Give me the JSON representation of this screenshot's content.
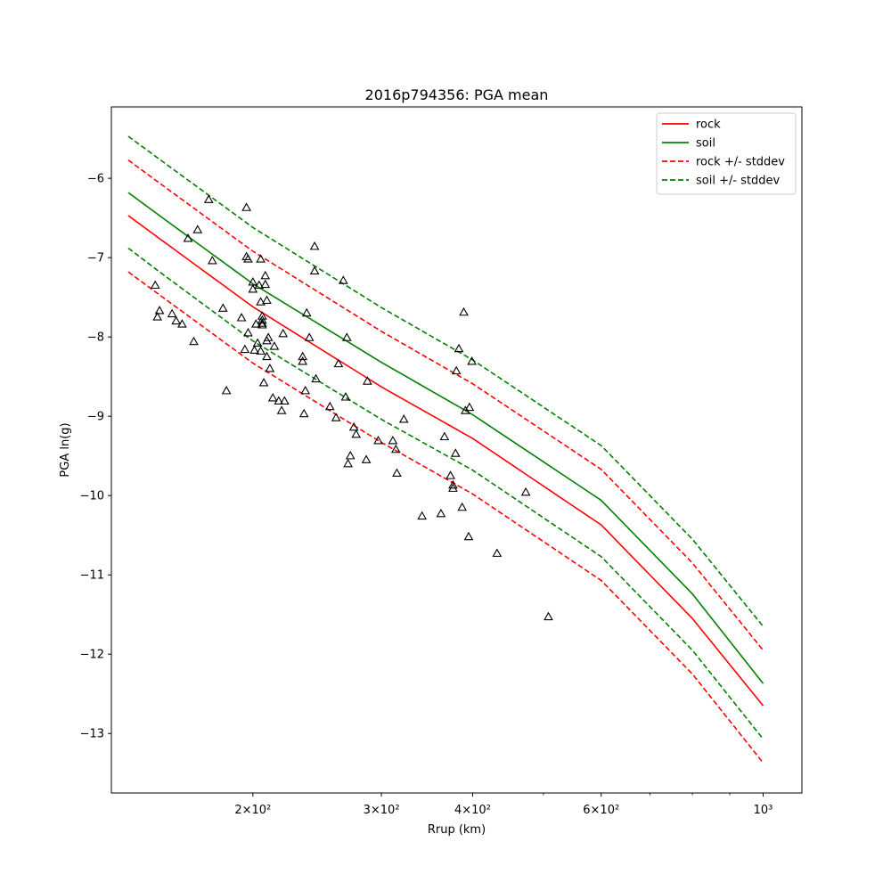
{
  "chart_data": {
    "type": "line",
    "title": "2016p794356: PGA mean",
    "xlabel": "Rrup (km)",
    "ylabel": "PGA ln(g)",
    "x_scale": "log",
    "xlim": [
      128,
      1130
    ],
    "ylim": [
      -13.75,
      -5.1
    ],
    "x_ticks": [
      {
        "value": 200,
        "label": "2×10²"
      },
      {
        "value": 300,
        "label": "3×10²"
      },
      {
        "value": 400,
        "label": "4×10²"
      },
      {
        "value": 600,
        "label": "6×10²"
      },
      {
        "value": 1000,
        "label": "10³"
      }
    ],
    "x_minor_ticks": [
      500,
      700,
      800,
      900
    ],
    "y_ticks": [
      {
        "value": -6,
        "label": "−6"
      },
      {
        "value": -7,
        "label": "−7"
      },
      {
        "value": -8,
        "label": "−8"
      },
      {
        "value": -9,
        "label": "−9"
      },
      {
        "value": -10,
        "label": "−10"
      },
      {
        "value": -11,
        "label": "−11"
      },
      {
        "value": -12,
        "label": "−12"
      },
      {
        "value": -13,
        "label": "−13"
      }
    ],
    "grid": false,
    "legend_position": "top-right",
    "series": [
      {
        "name": "rock",
        "color": "#ff0000",
        "style": "solid",
        "x": [
          135,
          150,
          200,
          300,
          400,
          600,
          800,
          1000
        ],
        "y": [
          -6.47,
          -6.78,
          -7.62,
          -8.63,
          -9.28,
          -10.37,
          -11.55,
          -12.65
        ]
      },
      {
        "name": "soil",
        "color": "#008000",
        "style": "solid",
        "x": [
          135,
          150,
          200,
          300,
          400,
          600,
          800,
          1000
        ],
        "y": [
          -6.18,
          -6.49,
          -7.33,
          -8.32,
          -8.98,
          -10.06,
          -11.24,
          -12.37
        ]
      },
      {
        "name": "rock +/- stddev",
        "color": "#ff0000",
        "style": "dashed",
        "x": [
          135,
          150,
          200,
          300,
          400,
          600,
          800,
          1000
        ],
        "y": [
          -5.77,
          -6.08,
          -6.92,
          -7.93,
          -8.59,
          -9.67,
          -10.85,
          -11.95
        ]
      },
      {
        "name": "",
        "color": "#ff0000",
        "style": "dashed",
        "x": [
          135,
          150,
          200,
          300,
          400,
          600,
          800,
          1000
        ],
        "y": [
          -7.18,
          -7.49,
          -8.33,
          -9.33,
          -9.98,
          -11.07,
          -12.25,
          -13.37
        ]
      },
      {
        "name": "soil +/- stddev",
        "color": "#008000",
        "style": "dashed",
        "x": [
          135,
          150,
          200,
          300,
          400,
          600,
          800,
          1000
        ],
        "y": [
          -5.47,
          -5.78,
          -6.62,
          -7.63,
          -8.29,
          -9.37,
          -10.55,
          -11.65
        ]
      },
      {
        "name": "",
        "color": "#008000",
        "style": "dashed",
        "x": [
          135,
          150,
          200,
          300,
          400,
          600,
          800,
          1000
        ],
        "y": [
          -6.88,
          -7.2,
          -8.05,
          -9.04,
          -9.68,
          -10.77,
          -11.95,
          -13.07
        ]
      }
    ],
    "observations": {
      "marker": "triangle",
      "color": "#000000",
      "points": [
        [
          147,
          -7.35
        ],
        [
          148,
          -7.75
        ],
        [
          149,
          -7.67
        ],
        [
          155,
          -7.71
        ],
        [
          157,
          -7.8
        ],
        [
          160,
          -7.84
        ],
        [
          163,
          -6.76
        ],
        [
          166,
          -8.06
        ],
        [
          168,
          -6.65
        ],
        [
          174,
          -6.27
        ],
        [
          176,
          -7.04
        ],
        [
          182,
          -7.64
        ],
        [
          184,
          -8.68
        ],
        [
          193,
          -7.76
        ],
        [
          195,
          -8.16
        ],
        [
          196,
          -6.99
        ],
        [
          196,
          -6.37
        ],
        [
          197,
          -7.02
        ],
        [
          197,
          -7.95
        ],
        [
          200,
          -7.31
        ],
        [
          200,
          -7.4
        ],
        [
          201,
          -8.17
        ],
        [
          202,
          -7.84
        ],
        [
          203,
          -8.08
        ],
        [
          204,
          -7.35
        ],
        [
          205,
          -7.02
        ],
        [
          205,
          -8.18
        ],
        [
          205,
          -7.56
        ],
        [
          206,
          -7.85
        ],
        [
          206,
          -7.83
        ],
        [
          206,
          -7.74
        ],
        [
          206,
          -7.79
        ],
        [
          207,
          -8.58
        ],
        [
          208,
          -7.34
        ],
        [
          208,
          -7.23
        ],
        [
          209,
          -8.05
        ],
        [
          209,
          -8.25
        ],
        [
          209,
          -7.54
        ],
        [
          210,
          -8.01
        ],
        [
          211,
          -8.4
        ],
        [
          213,
          -8.77
        ],
        [
          214,
          -8.12
        ],
        [
          217,
          -8.81
        ],
        [
          219,
          -8.93
        ],
        [
          220,
          -7.96
        ],
        [
          221,
          -8.81
        ],
        [
          234,
          -8.31
        ],
        [
          234,
          -8.25
        ],
        [
          235,
          -8.97
        ],
        [
          236,
          -8.68
        ],
        [
          237,
          -7.7
        ],
        [
          239,
          -8.01
        ],
        [
          243,
          -6.86
        ],
        [
          243,
          -7.17
        ],
        [
          244,
          -8.53
        ],
        [
          255,
          -8.88
        ],
        [
          260,
          -9.02
        ],
        [
          262,
          -8.34
        ],
        [
          266,
          -7.29
        ],
        [
          268,
          -8.76
        ],
        [
          269,
          -8.01
        ],
        [
          270,
          -9.6
        ],
        [
          272,
          -9.5
        ],
        [
          275,
          -9.14
        ],
        [
          277,
          -9.23
        ],
        [
          286,
          -9.55
        ],
        [
          287,
          -8.56
        ],
        [
          297,
          -9.31
        ],
        [
          311,
          -9.31
        ],
        [
          314,
          -9.42
        ],
        [
          315,
          -9.72
        ],
        [
          322,
          -9.04
        ],
        [
          341,
          -10.26
        ],
        [
          362,
          -10.23
        ],
        [
          366,
          -9.26
        ],
        [
          373,
          -9.75
        ],
        [
          376,
          -9.87
        ],
        [
          376,
          -9.91
        ],
        [
          379,
          -9.47
        ],
        [
          380,
          -8.43
        ],
        [
          383,
          -8.15
        ],
        [
          387,
          -10.15
        ],
        [
          389,
          -7.69
        ],
        [
          391,
          -8.93
        ],
        [
          395,
          -10.52
        ],
        [
          396,
          -8.89
        ],
        [
          399,
          -8.31
        ],
        [
          432,
          -10.73
        ],
        [
          473,
          -9.96
        ],
        [
          508,
          -11.53
        ]
      ]
    }
  },
  "legend": {
    "items": [
      {
        "label": "rock",
        "color": "#ff0000",
        "style": "solid"
      },
      {
        "label": "soil",
        "color": "#008000",
        "style": "solid"
      },
      {
        "label": "rock +/- stddev",
        "color": "#ff0000",
        "style": "dashed"
      },
      {
        "label": "soil +/- stddev",
        "color": "#008000",
        "style": "dashed"
      }
    ]
  }
}
